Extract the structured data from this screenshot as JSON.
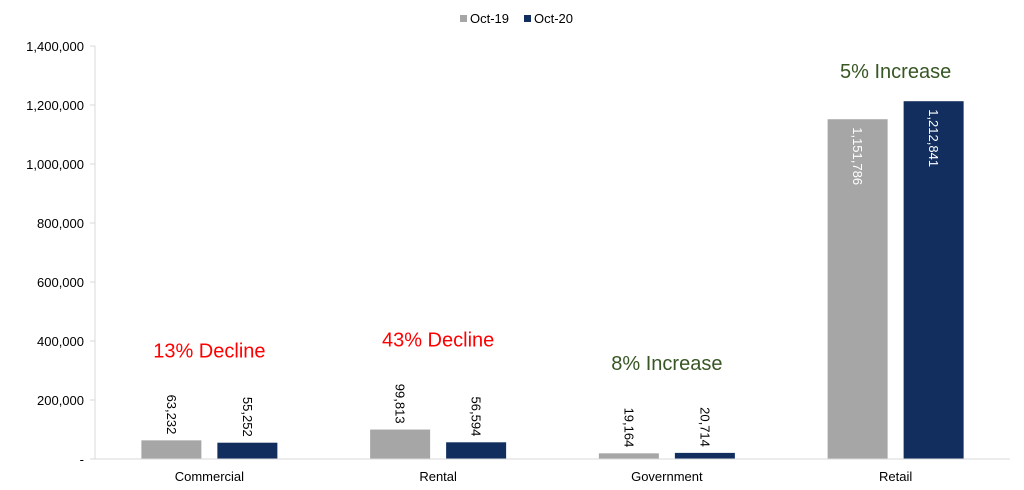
{
  "chart_data": {
    "type": "bar",
    "categories": [
      "Commercial",
      "Rental",
      "Government",
      "Retail"
    ],
    "series": [
      {
        "name": "Oct-19",
        "color": "#a6a6a6",
        "values": [
          63232,
          99813,
          19164,
          1151786
        ],
        "labels": [
          "63,232",
          "99,813",
          "19,164",
          "1,151,786"
        ]
      },
      {
        "name": "Oct-20",
        "color": "#112e5e",
        "values": [
          55252,
          56594,
          20714,
          1212841
        ],
        "labels": [
          "55,252",
          "56,594",
          "20,714",
          "1,212,841"
        ]
      }
    ],
    "ylim": [
      0,
      1400000
    ],
    "yticks": [
      {
        "value": 0,
        "label": "-"
      },
      {
        "value": 200000,
        "label": "200,000"
      },
      {
        "value": 400000,
        "label": "400,000"
      },
      {
        "value": 600000,
        "label": "600,000"
      },
      {
        "value": 800000,
        "label": "800,000"
      },
      {
        "value": 1000000,
        "label": "1,000,000"
      },
      {
        "value": 1200000,
        "label": "1,200,000"
      },
      {
        "value": 1400000,
        "label": "1,400,000"
      }
    ],
    "annotations": [
      {
        "text": "13% Decline",
        "color": "#ff0000"
      },
      {
        "text": "43% Decline",
        "color": "#ff0000"
      },
      {
        "text": "8% Increase",
        "color": "#375623"
      },
      {
        "text": "5% Increase",
        "color": "#375623"
      }
    ],
    "legend_position": "top-center",
    "grid": false,
    "title": "",
    "xlabel": "",
    "ylabel": ""
  }
}
